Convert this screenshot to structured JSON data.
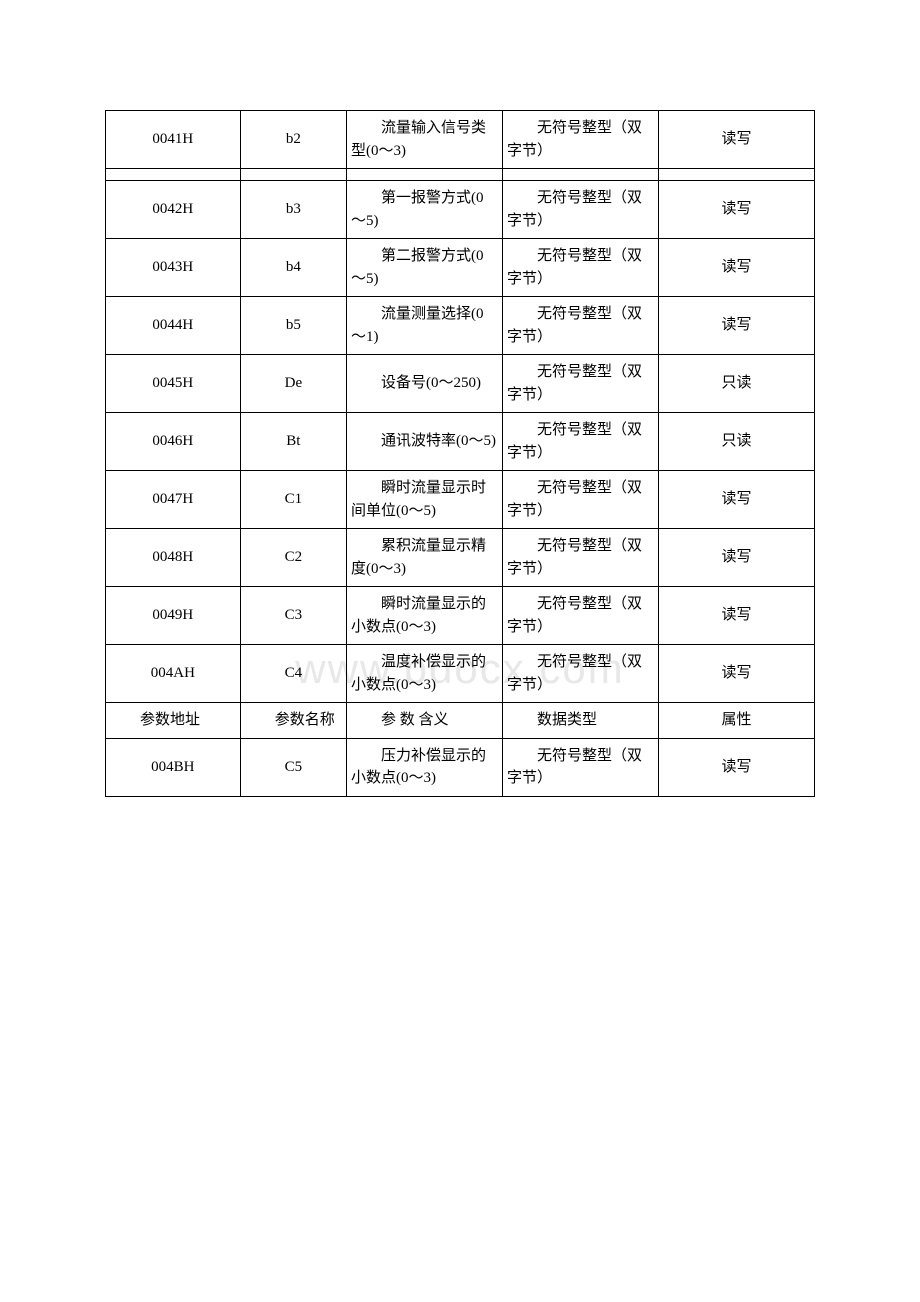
{
  "watermark_text": "www.bdocx.com",
  "table": {
    "columns": {
      "addr_header": "参数地址",
      "name_header": "参数名称",
      "meaning_header": "参 数 含义",
      "type_header": "数据类型",
      "attr_header": "属性"
    },
    "rows": [
      {
        "addr": "0041H",
        "name": "b2",
        "meaning": "流量输入信号类型(0～3)",
        "type": "无符号整型（双字节）",
        "attr": "读写"
      },
      {
        "addr": "0042H",
        "name": "b3",
        "meaning": "第一报警方式(0～5)",
        "type": "无符号整型（双字节）",
        "attr": "读写"
      },
      {
        "addr": "0043H",
        "name": "b4",
        "meaning": "第二报警方式(0～5)",
        "type": "无符号整型（双字节）",
        "attr": "读写"
      },
      {
        "addr": "0044H",
        "name": "b5",
        "meaning": "流量测量选择(0～1)",
        "type": "无符号整型（双字节）",
        "attr": "读写"
      },
      {
        "addr": "0045H",
        "name": "De",
        "meaning": "设备号(0～250)",
        "type": "无符号整型（双字节）",
        "attr": "只读"
      },
      {
        "addr": "0046H",
        "name": "Bt",
        "meaning": "通讯波特率(0～5)",
        "type": "无符号整型（双字节）",
        "attr": "只读"
      },
      {
        "addr": "0047H",
        "name": "C1",
        "meaning": "瞬时流量显示时间单位(0～5)",
        "type": "无符号整型（双字节）",
        "attr": "读写"
      },
      {
        "addr": "0048H",
        "name": "C2",
        "meaning": "累积流量显示精度(0～3)",
        "type": "无符号整型（双字节）",
        "attr": "读写"
      },
      {
        "addr": "0049H",
        "name": "C3",
        "meaning": "瞬时流量显示的小数点(0～3)",
        "type": "无符号整型（双字节）",
        "attr": "读写"
      },
      {
        "addr": "004AH",
        "name": "C4",
        "meaning": "温度补偿显示的小数点(0～3)",
        "type": "无符号整型（双字节）",
        "attr": "读写"
      },
      {
        "addr": "004BH",
        "name": "C5",
        "meaning": "压力补偿显示的小数点(0～3)",
        "type": "无符号整型（双字节）",
        "attr": "读写"
      }
    ]
  },
  "styling": {
    "background_color": "#ffffff",
    "border_color": "#000000",
    "text_color": "#000000",
    "watermark_color": "#e8e8e8",
    "font_size_cell": 15,
    "font_family": "SimSun"
  }
}
